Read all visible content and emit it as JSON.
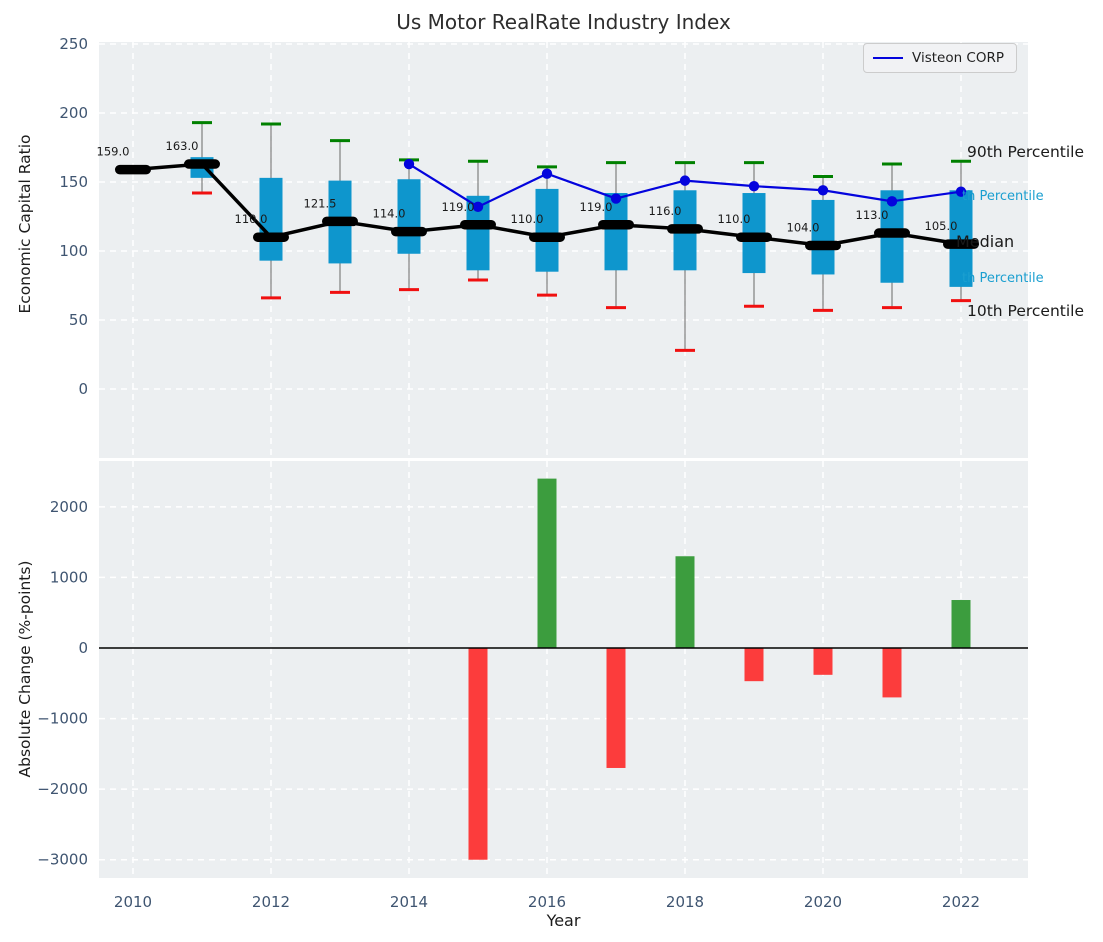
{
  "title": "Us Motor RealRate Industry Index",
  "legend": {
    "label": "Visteon CORP"
  },
  "axes": {
    "top_ylabel": "Economic Capital Ratio",
    "bottom_ylabel": "Absolute Change (%-points)",
    "xlabel": "Year"
  },
  "annotations": {
    "p90": "90th Percentile",
    "p75_partial": "th Percentile",
    "median": "Median",
    "p25_partial": "th Percentile",
    "p10": "10th Percentile"
  },
  "colors": {
    "panel_bg": "#eceff1",
    "grid": "#ffffff",
    "tick": "#3f5571",
    "box": "#0e96cd",
    "whisker_line": "#7f7f7f",
    "cap_high": "#008000",
    "cap_low": "#f01010",
    "median_line": "#000000",
    "visteon_line": "#0404dd",
    "bar_positive": "#3c9d3e",
    "bar_negative": "#fc3c3c",
    "zero_line": "#000000",
    "annotation_cyan": "#1b9fd0",
    "median_label": "#1a1a1a"
  },
  "chart_data": [
    {
      "type": "boxplot",
      "panel": "top",
      "title": "Us Motor RealRate Industry Index",
      "ylabel": "Economic Capital Ratio",
      "ylim": [
        -50,
        251
      ],
      "yticks": [
        0,
        50,
        100,
        150,
        200,
        250
      ],
      "grid": true,
      "years": [
        2010,
        2011,
        2012,
        2013,
        2014,
        2015,
        2016,
        2017,
        2018,
        2019,
        2020,
        2021,
        2022
      ],
      "median": [
        159,
        163,
        110,
        121.5,
        114,
        119,
        110,
        119,
        116,
        110,
        104,
        113,
        105
      ],
      "median_labels": [
        "159.0",
        "163.0",
        "110.0",
        "121.5",
        "114.0",
        "119.0",
        "110.0",
        "119.0",
        "116.0",
        "110.0",
        "104.0",
        "113.0",
        "105.0"
      ],
      "q1": [
        158,
        153,
        93,
        91,
        98,
        86,
        85,
        86,
        86,
        84,
        83,
        77,
        74
      ],
      "q3": [
        160,
        168,
        153,
        151,
        152,
        140,
        145,
        142,
        144,
        142,
        137,
        144,
        144
      ],
      "whisker_low": [
        157,
        142,
        66,
        70,
        72,
        79,
        68,
        59,
        28,
        60,
        57,
        59,
        64
      ],
      "whisker_high": [
        161,
        193,
        192,
        180,
        166,
        165,
        161,
        164,
        164,
        164,
        154,
        163,
        165
      ],
      "series": [
        {
          "name": "Visteon CORP",
          "x": [
            2014,
            2015,
            2016,
            2017,
            2018,
            2019,
            2020,
            2021,
            2022
          ],
          "y": [
            163,
            132,
            156,
            138,
            151,
            147,
            144,
            136,
            143
          ]
        }
      ],
      "legend_position": "upper right"
    },
    {
      "type": "bar",
      "panel": "bottom",
      "ylabel": "Absolute Change (%-points)",
      "xlabel": "Year",
      "ylim": [
        -3260,
        2650
      ],
      "yticks": [
        -3000,
        -2000,
        -1000,
        0,
        1000,
        2000
      ],
      "xticks": [
        2010,
        2012,
        2014,
        2016,
        2018,
        2020,
        2022
      ],
      "grid": true,
      "x": [
        2015,
        2016,
        2017,
        2018,
        2019,
        2020,
        2021,
        2022
      ],
      "values": [
        -3000,
        2400,
        -1700,
        1300,
        -470,
        -380,
        -700,
        680
      ]
    }
  ]
}
